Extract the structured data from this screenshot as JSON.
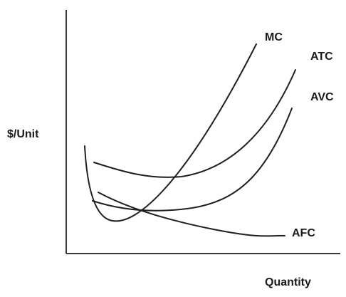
{
  "diagram": {
    "y_axis_label": "$/Unit",
    "x_axis_label": "Quantity",
    "curves": [
      {
        "id": "mc",
        "label": "MC"
      },
      {
        "id": "atc",
        "label": "ATC"
      },
      {
        "id": "avc",
        "label": "AVC"
      },
      {
        "id": "afc",
        "label": "AFC"
      }
    ]
  }
}
